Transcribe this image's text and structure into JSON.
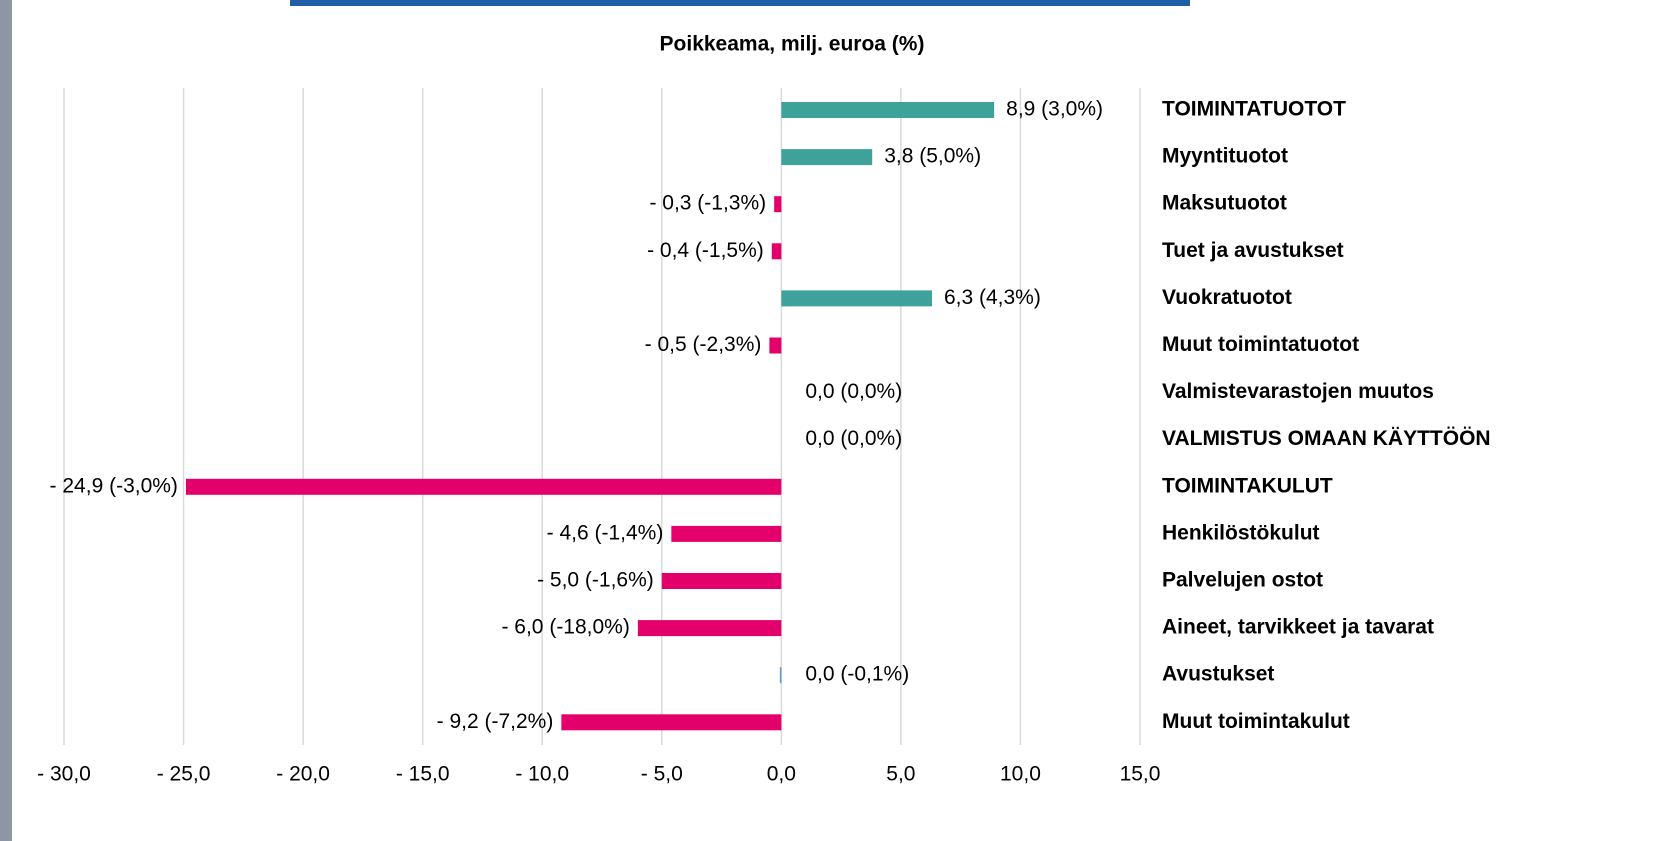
{
  "chart_data": {
    "type": "hbar",
    "title": "Poikkeama, milj. euroa (%)",
    "categories": [
      "TOIMINTATUOTOT",
      "Myyntituotot",
      "Maksutuotot",
      "Tuet ja avustukset",
      "Vuokratuotot",
      "Muut toimintatuotot",
      "Valmistevarastojen muutos",
      "VALMISTUS OMAAN KÄYTTÖÖN",
      "TOIMINTAKULUT",
      "Henkilöstökulut",
      "Palvelujen ostot",
      "Aineet, tarvikkeet ja tavarat",
      "Avustukset",
      "Muut toimintakulut"
    ],
    "values": [
      8.9,
      3.8,
      -0.3,
      -0.4,
      6.3,
      -0.5,
      0.0,
      0.0,
      -24.9,
      -4.6,
      -5.0,
      -6.0,
      0.0,
      -9.2
    ],
    "value_labels": [
      "8,9 (3,0%)",
      "3,8 (5,0%)",
      "- 0,3 (-1,3%)",
      "- 0,4 (-1,5%)",
      "6,3 (4,3%)",
      "- 0,5 (-2,3%)",
      "0,0 (0,0%)",
      "0,0 (0,0%)",
      "- 24,9 (-3,0%)",
      "- 4,6 (-1,4%)",
      "- 5,0 (-1,6%)",
      "- 6,0 (-18,0%)",
      "0,0 (-0,1%)",
      "- 9,2 (-7,2%)"
    ],
    "colors": [
      "#3fa29a",
      "#3fa29a",
      "#e4006b",
      "#e4006b",
      "#3fa29a",
      "#e4006b",
      "#3fa29a",
      "#3fa29a",
      "#e4006b",
      "#e4006b",
      "#e4006b",
      "#e4006b",
      "#5b9bd5",
      "#e4006b"
    ],
    "xlim": [
      -30,
      15
    ],
    "xticks": [
      {
        "value": -30,
        "label": "- 30,0"
      },
      {
        "value": -25,
        "label": "- 25,0"
      },
      {
        "value": -20,
        "label": "- 20,0"
      },
      {
        "value": -15,
        "label": "- 15,0"
      },
      {
        "value": -10,
        "label": "- 10,0"
      },
      {
        "value": -5,
        "label": "- 5,0"
      },
      {
        "value": 0,
        "label": "0,0"
      },
      {
        "value": 5,
        "label": "5,0"
      },
      {
        "value": 10,
        "label": "10,0"
      },
      {
        "value": 15,
        "label": "15,0"
      }
    ],
    "grid": true
  }
}
